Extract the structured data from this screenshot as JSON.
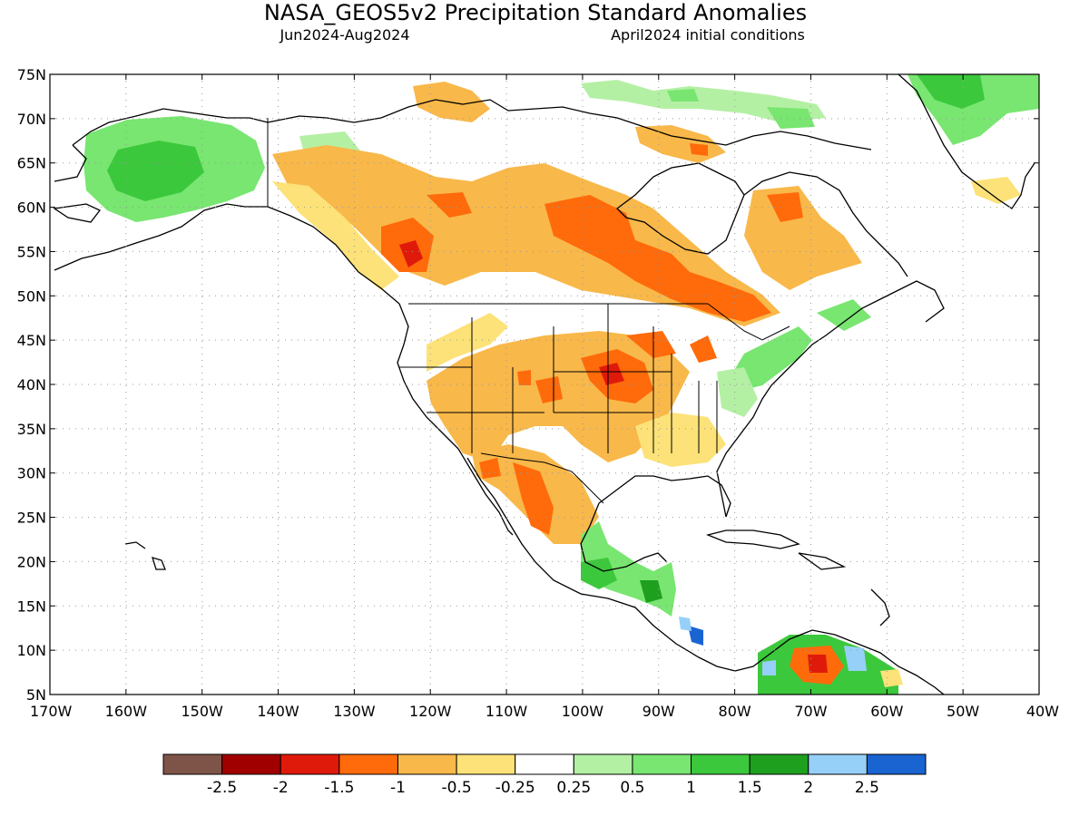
{
  "title": "NASA_GEOS5v2 Precipitation Standard Anomalies",
  "period": "Jun2024-Aug2024",
  "initial_conditions": "April2024 initial conditions",
  "lat_labels": [
    "75N",
    "70N",
    "65N",
    "60N",
    "55N",
    "50N",
    "45N",
    "40N",
    "35N",
    "30N",
    "25N",
    "20N",
    "15N",
    "10N",
    "5N"
  ],
  "lon_labels": [
    "170W",
    "160W",
    "150W",
    "140W",
    "130W",
    "120W",
    "110W",
    "100W",
    "90W",
    "80W",
    "70W",
    "60W",
    "50W",
    "40W"
  ],
  "colorbar": {
    "colors": [
      "#7f5448",
      "#a00000",
      "#e01a0a",
      "#ff6a0a",
      "#f8b84a",
      "#fce278",
      "#ffffff",
      "#b4f0a4",
      "#78e670",
      "#3cc83c",
      "#1ea01e",
      "#96d0f8",
      "#1a64d2"
    ],
    "labels": [
      "-2.5",
      "-2",
      "-1.5",
      "-1",
      "-0.5",
      "-0.25",
      "0.25",
      "0.5",
      "1",
      "1.5",
      "2",
      "2.5"
    ]
  },
  "chart_data": {
    "type": "heatmap",
    "variable": "Precipitation Standard Anomalies",
    "lat_range": [
      5,
      75
    ],
    "lon_range": [
      -170,
      -40
    ],
    "grid": true,
    "scale": [
      -2.5,
      -2,
      -1.5,
      -1,
      -0.5,
      -0.25,
      0.25,
      0.5,
      1,
      1.5,
      2,
      2.5
    ]
  }
}
